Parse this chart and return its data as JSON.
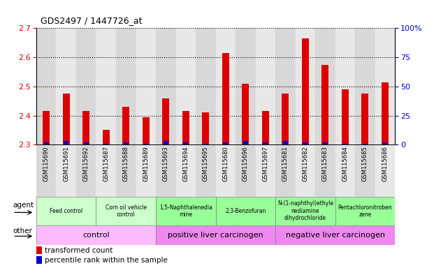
{
  "title": "GDS2497 / 1447726_at",
  "samples": [
    "GSM115690",
    "GSM115691",
    "GSM115692",
    "GSM115687",
    "GSM115688",
    "GSM115689",
    "GSM115693",
    "GSM115694",
    "GSM115695",
    "GSM115680",
    "GSM115696",
    "GSM115697",
    "GSM115681",
    "GSM115682",
    "GSM115683",
    "GSM115684",
    "GSM115685",
    "GSM115686"
  ],
  "transformed_count": [
    2.415,
    2.475,
    2.415,
    2.35,
    2.43,
    2.395,
    2.46,
    2.415,
    2.41,
    2.615,
    2.51,
    2.415,
    2.475,
    2.665,
    2.575,
    2.49,
    2.475,
    2.515
  ],
  "percentile_rank": [
    2,
    3,
    2,
    1,
    2,
    1,
    3,
    2,
    1,
    2,
    3,
    2,
    3,
    2,
    2,
    1,
    1,
    2
  ],
  "ylim_left": [
    2.3,
    2.7
  ],
  "ylim_right": [
    0,
    100
  ],
  "yticks_left": [
    2.3,
    2.4,
    2.5,
    2.6,
    2.7
  ],
  "yticks_right": [
    0,
    25,
    50,
    75,
    100
  ],
  "bar_color": "#dd0000",
  "percentile_color": "#0000cc",
  "agent_groups": [
    {
      "label": "Feed control",
      "start": 0,
      "end": 3,
      "color": "#ccffcc"
    },
    {
      "label": "Corn oil vehicle\ncontrol",
      "start": 3,
      "end": 6,
      "color": "#ccffcc"
    },
    {
      "label": "1,5-Naphthalenedia\nmine",
      "start": 6,
      "end": 9,
      "color": "#99ff99"
    },
    {
      "label": "2,3-Benzofuran",
      "start": 9,
      "end": 12,
      "color": "#99ff99"
    },
    {
      "label": "N-(1-naphthyl)ethyle\nnediamine\ndihydrochloride",
      "start": 12,
      "end": 15,
      "color": "#99ff99"
    },
    {
      "label": "Pentachloronitroben\nzene",
      "start": 15,
      "end": 18,
      "color": "#99ff99"
    }
  ],
  "other_groups": [
    {
      "label": "control",
      "start": 0,
      "end": 6,
      "color": "#ffbbff"
    },
    {
      "label": "positive liver carcinogen",
      "start": 6,
      "end": 12,
      "color": "#ee88ee"
    },
    {
      "label": "negative liver carcinogen",
      "start": 12,
      "end": 18,
      "color": "#ee88ee"
    }
  ],
  "agent_label_color": "#ccffcc",
  "tick_label_color_left": "#dd0000",
  "tick_label_color_right": "#0000cc",
  "sample_col_colors": [
    "#d8d8d8",
    "#e8e8e8"
  ]
}
